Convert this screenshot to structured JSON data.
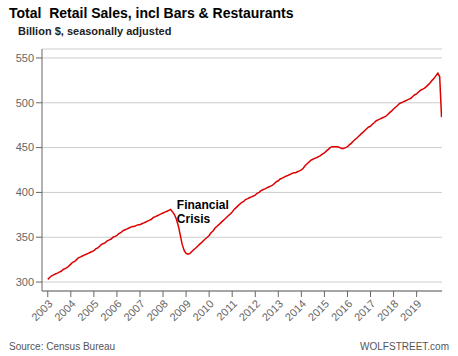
{
  "chart_data": {
    "type": "line",
    "title": "Total  Retail Sales, incl Bars & Restaurants",
    "subtitle": "Billion $, seasonally adjusted",
    "footer": {
      "left": "Source: Census Bureau",
      "right": "WOLFSTREET.com"
    },
    "annotations": [
      {
        "text": "Financial\nCrisis",
        "x": 2008.6,
        "y": 395
      }
    ],
    "color": "#dd0000",
    "grid": "y",
    "xlim": [
      2002.75,
      2020.1
    ],
    "xticks": [
      2003,
      2004,
      2005,
      2006,
      2007,
      2008,
      2009,
      2010,
      2011,
      2012,
      2013,
      2014,
      2015,
      2016,
      2017,
      2018,
      2019
    ],
    "ylim": [
      290,
      560
    ],
    "yticks": [
      300,
      350,
      400,
      450,
      500,
      550
    ],
    "x": [
      2003.0,
      2003.08,
      2003.17,
      2003.25,
      2003.33,
      2003.42,
      2003.5,
      2003.58,
      2003.67,
      2003.75,
      2003.83,
      2003.92,
      2004.0,
      2004.08,
      2004.17,
      2004.25,
      2004.33,
      2004.42,
      2004.5,
      2004.58,
      2004.67,
      2004.75,
      2004.83,
      2004.92,
      2005.0,
      2005.08,
      2005.17,
      2005.25,
      2005.33,
      2005.42,
      2005.5,
      2005.58,
      2005.67,
      2005.75,
      2005.83,
      2005.92,
      2006.0,
      2006.08,
      2006.17,
      2006.25,
      2006.33,
      2006.42,
      2006.5,
      2006.58,
      2006.67,
      2006.75,
      2006.83,
      2006.92,
      2007.0,
      2007.08,
      2007.17,
      2007.25,
      2007.33,
      2007.42,
      2007.5,
      2007.58,
      2007.67,
      2007.75,
      2007.83,
      2007.92,
      2008.0,
      2008.08,
      2008.17,
      2008.25,
      2008.33,
      2008.42,
      2008.5,
      2008.58,
      2008.67,
      2008.75,
      2008.83,
      2008.92,
      2009.0,
      2009.08,
      2009.17,
      2009.25,
      2009.33,
      2009.42,
      2009.5,
      2009.58,
      2009.67,
      2009.75,
      2009.83,
      2009.92,
      2010.0,
      2010.08,
      2010.17,
      2010.25,
      2010.33,
      2010.42,
      2010.5,
      2010.58,
      2010.67,
      2010.75,
      2010.83,
      2010.92,
      2011.0,
      2011.08,
      2011.17,
      2011.25,
      2011.33,
      2011.42,
      2011.5,
      2011.58,
      2011.67,
      2011.75,
      2011.83,
      2011.92,
      2012.0,
      2012.08,
      2012.17,
      2012.25,
      2012.33,
      2012.42,
      2012.5,
      2012.58,
      2012.67,
      2012.75,
      2012.83,
      2012.92,
      2013.0,
      2013.08,
      2013.17,
      2013.25,
      2013.33,
      2013.42,
      2013.5,
      2013.58,
      2013.67,
      2013.75,
      2013.83,
      2013.92,
      2014.0,
      2014.08,
      2014.17,
      2014.25,
      2014.33,
      2014.42,
      2014.5,
      2014.58,
      2014.67,
      2014.75,
      2014.83,
      2014.92,
      2015.0,
      2015.08,
      2015.17,
      2015.25,
      2015.33,
      2015.42,
      2015.5,
      2015.58,
      2015.67,
      2015.75,
      2015.83,
      2015.92,
      2016.0,
      2016.08,
      2016.17,
      2016.25,
      2016.33,
      2016.42,
      2016.5,
      2016.58,
      2016.67,
      2016.75,
      2016.83,
      2016.92,
      2017.0,
      2017.08,
      2017.17,
      2017.25,
      2017.33,
      2017.42,
      2017.5,
      2017.58,
      2017.67,
      2017.75,
      2017.83,
      2017.92,
      2018.0,
      2018.08,
      2018.17,
      2018.25,
      2018.33,
      2018.42,
      2018.5,
      2018.58,
      2018.67,
      2018.75,
      2018.83,
      2018.92,
      2019.0,
      2019.08,
      2019.17,
      2019.25,
      2019.33,
      2019.42,
      2019.5,
      2019.58,
      2019.67,
      2019.75,
      2019.83,
      2019.92,
      2020.0,
      2020.08
    ],
    "values": [
      303,
      305,
      307,
      308,
      309,
      310,
      311,
      312,
      314,
      315,
      316,
      318,
      320,
      322,
      323,
      325,
      327,
      328,
      329,
      330,
      331,
      332,
      333,
      334,
      335,
      337,
      338,
      340,
      342,
      343,
      344,
      346,
      347,
      348,
      350,
      351,
      352,
      354,
      355,
      357,
      358,
      359,
      360,
      361,
      362,
      362,
      363,
      364,
      364,
      365,
      366,
      367,
      368,
      369,
      370,
      372,
      373,
      374,
      375,
      376,
      377,
      378,
      379,
      380,
      381,
      378,
      375,
      370,
      362,
      352,
      342,
      335,
      332,
      331,
      332,
      334,
      336,
      338,
      340,
      342,
      344,
      346,
      348,
      350,
      352,
      355,
      357,
      360,
      362,
      364,
      366,
      368,
      370,
      372,
      374,
      376,
      378,
      381,
      383,
      385,
      387,
      389,
      390,
      392,
      393,
      394,
      395,
      396,
      397,
      399,
      400,
      402,
      403,
      404,
      405,
      406,
      407,
      408,
      410,
      412,
      413,
      415,
      416,
      417,
      418,
      419,
      420,
      421,
      422,
      422,
      423,
      424,
      425,
      427,
      430,
      432,
      434,
      436,
      437,
      438,
      439,
      440,
      441,
      443,
      444,
      446,
      448,
      450,
      451,
      451,
      451,
      451,
      450,
      449,
      449,
      450,
      451,
      453,
      455,
      457,
      459,
      461,
      463,
      465,
      467,
      469,
      471,
      473,
      474,
      476,
      478,
      480,
      481,
      482,
      483,
      484,
      485,
      487,
      489,
      491,
      493,
      495,
      497,
      499,
      500,
      501,
      502,
      503,
      504,
      505,
      507,
      509,
      510,
      512,
      514,
      515,
      516,
      518,
      520,
      522,
      525,
      527,
      530,
      533,
      529,
      484
    ]
  }
}
